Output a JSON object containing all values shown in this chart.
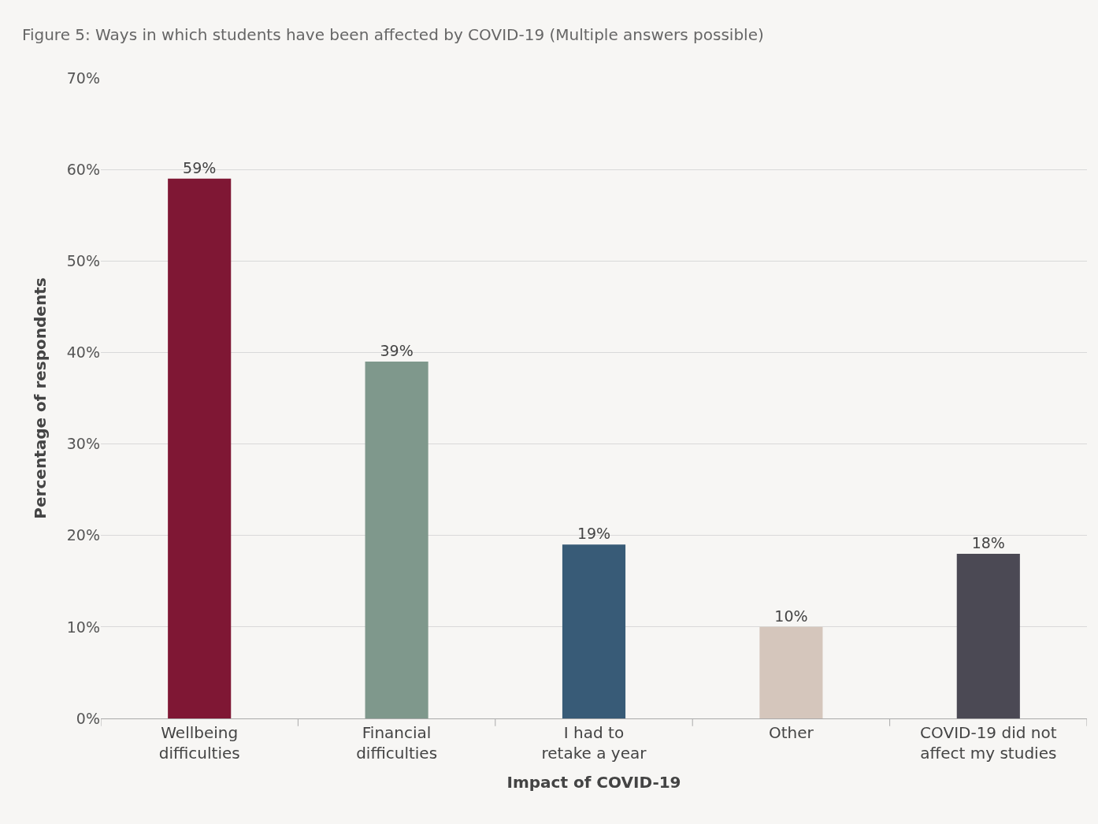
{
  "chart_data": {
    "type": "bar",
    "title": "Figure 5: Ways in which students have been affected by COVID-19 (Multiple answers possible)",
    "xlabel": "Impact of COVID-19",
    "ylabel": "Percentage of respondents",
    "categories": [
      "Wellbeing difficulties",
      "Financial difficulties",
      "I had to retake a year",
      "Other",
      "COVID-19 did not affect my studies"
    ],
    "values": [
      59,
      39,
      19,
      10,
      18
    ],
    "colors": [
      "#7f1734",
      "#7f988c",
      "#385b77",
      "#d5c6bc",
      "#4b4954"
    ],
    "value_labels": [
      "59%",
      "39%",
      "19%",
      "10%",
      "18%"
    ],
    "ylim": [
      0,
      70
    ],
    "yticks": [
      {
        "value": 0,
        "label": "0%"
      },
      {
        "value": 10,
        "label": "10%"
      },
      {
        "value": 20,
        "label": "20%"
      },
      {
        "value": 30,
        "label": "30%"
      },
      {
        "value": 40,
        "label": "40%"
      },
      {
        "value": 50,
        "label": "50%"
      },
      {
        "value": 60,
        "label": "60%"
      },
      {
        "value": 70,
        "label": "70%"
      }
    ],
    "grid": "y",
    "legend": false
  }
}
